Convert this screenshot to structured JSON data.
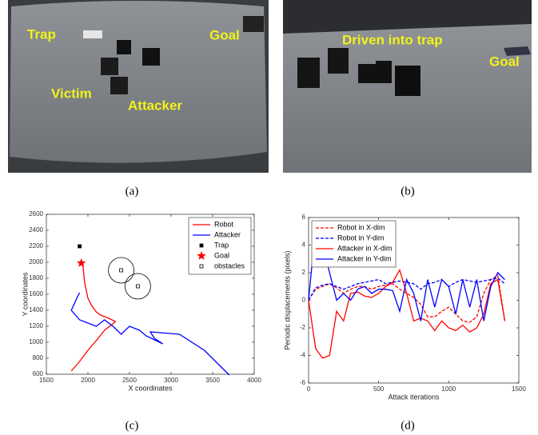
{
  "photos": [
    {
      "caption": "(a)",
      "labels": [
        "Trap",
        "Goal",
        "Victim",
        "Attacker"
      ]
    },
    {
      "caption": "(b)",
      "labels": [
        "Driven into trap",
        "Goal"
      ]
    }
  ],
  "chart_data": [
    {
      "type": "line",
      "caption": "(c)",
      "xlabel": "X coordinates",
      "ylabel": "Y coordinates",
      "xlim": [
        1500,
        4000
      ],
      "xticks": [
        1500,
        2000,
        2500,
        3000,
        3500,
        4000
      ],
      "ylim": [
        600,
        2600
      ],
      "yticks": [
        600,
        800,
        1000,
        1200,
        1400,
        1600,
        1800,
        2000,
        2200,
        2400,
        2600
      ],
      "legend": "upper right",
      "series": [
        {
          "name": "Robot",
          "color": "#ff0000",
          "x": [
            1800,
            1900,
            2000,
            2100,
            2200,
            2300,
            2330,
            2250,
            2150,
            2100,
            2050,
            2000,
            1980,
            1960,
            1950,
            1940,
            1920
          ],
          "values": [
            640,
            760,
            900,
            1020,
            1150,
            1230,
            1260,
            1300,
            1340,
            1380,
            1450,
            1550,
            1650,
            1750,
            1850,
            1950,
            1990
          ]
        },
        {
          "name": "Attacker",
          "color": "#0000ff",
          "x": [
            1900,
            1880,
            1800,
            1900,
            2100,
            2200,
            2300,
            2400,
            2500,
            2620,
            2700,
            2900,
            2800,
            2750,
            3100,
            3400,
            3700
          ],
          "values": [
            1620,
            1580,
            1400,
            1280,
            1200,
            1280,
            1200,
            1100,
            1200,
            1150,
            1080,
            980,
            1050,
            1130,
            1100,
            900,
            590
          ]
        },
        {
          "name": "Trap",
          "color": "#000000",
          "marker": "square",
          "x": [
            1900
          ],
          "values": [
            2200
          ]
        },
        {
          "name": "Goal",
          "color": "#ff0000",
          "marker": "star",
          "x": [
            1920
          ],
          "values": [
            1990
          ]
        },
        {
          "name": "obstacles",
          "color": "#000000",
          "marker": "open-square",
          "x": [
            2400,
            2600
          ],
          "values": [
            1900,
            1700
          ]
        }
      ]
    },
    {
      "type": "line",
      "caption": "(d)",
      "xlabel": "Attack iterations",
      "ylabel": "Periodic displacements (pixels)",
      "xlim": [
        0,
        1500
      ],
      "xticks": [
        0,
        500,
        1000,
        1500
      ],
      "ylim": [
        -6,
        6
      ],
      "yticks": [
        -6,
        -4,
        -2,
        0,
        2,
        4,
        6
      ],
      "legend": "upper left",
      "x": [
        0,
        50,
        100,
        150,
        200,
        250,
        300,
        350,
        400,
        450,
        500,
        550,
        600,
        650,
        700,
        750,
        800,
        850,
        900,
        950,
        1000,
        1050,
        1100,
        1150,
        1200,
        1250,
        1300,
        1350,
        1400
      ],
      "series": [
        {
          "name": "Robot in X-dim",
          "color": "#ff0000",
          "dash": true,
          "values": [
            0,
            0.8,
            1.0,
            1.2,
            0.9,
            0.5,
            0.8,
            1.0,
            1.0,
            0.8,
            1.0,
            1.1,
            1.2,
            0.8,
            0.5,
            0.2,
            -0.3,
            -1.2,
            -1.2,
            -0.8,
            -0.5,
            -1.0,
            -1.5,
            -1.6,
            -1.2,
            0.5,
            1.5,
            1.8,
            -1.5
          ]
        },
        {
          "name": "Robot in Y-dim",
          "color": "#0000ff",
          "dash": true,
          "values": [
            0,
            0.9,
            1.1,
            1.2,
            1.0,
            0.8,
            1.0,
            1.2,
            1.3,
            1.4,
            1.5,
            1.2,
            1.3,
            1.4,
            1.3,
            1.2,
            0.8,
            1.2,
            1.3,
            1.5,
            1.0,
            1.3,
            1.5,
            1.4,
            1.3,
            1.4,
            1.5,
            1.6,
            1.2
          ]
        },
        {
          "name": "Attacker in X-dim",
          "color": "#ff0000",
          "dash": false,
          "values": [
            0,
            -3.5,
            -4.2,
            -4.0,
            -0.8,
            -1.5,
            0.5,
            0.6,
            0.3,
            0.2,
            0.5,
            1.0,
            1.3,
            2.2,
            0.5,
            -1.5,
            -1.3,
            -1.5,
            -2.2,
            -1.5,
            -2.0,
            -2.2,
            -1.8,
            -2.3,
            -2.0,
            -1.0,
            1.2,
            1.5,
            -1.5
          ]
        },
        {
          "name": "Attacker in Y-dim",
          "color": "#0000ff",
          "dash": false,
          "values": [
            0,
            5.3,
            4.0,
            2.0,
            0.0,
            0.5,
            0.0,
            0.8,
            1.0,
            0.5,
            0.8,
            0.8,
            0.7,
            -0.8,
            1.5,
            0.5,
            -1.5,
            1.5,
            -0.5,
            1.5,
            1.0,
            -1.0,
            1.5,
            -0.5,
            1.5,
            -1.5,
            1.0,
            2.0,
            1.5
          ]
        }
      ]
    }
  ]
}
